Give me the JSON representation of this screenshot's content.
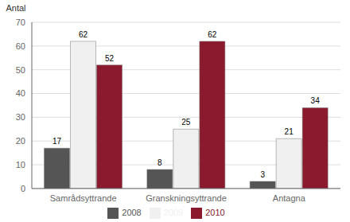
{
  "chart_data": {
    "type": "bar",
    "categories": [
      "Samrådsyttrande",
      "Granskningsyttrande",
      "Antagna"
    ],
    "series": [
      {
        "name": "2008",
        "color": "#555555",
        "values": [
          17,
          8,
          3
        ]
      },
      {
        "name": "2009",
        "color": "#f0f0f0",
        "values": [
          62,
          25,
          21
        ]
      },
      {
        "name": "2010",
        "color": "#8b1a2e",
        "values": [
          52,
          62,
          34
        ]
      }
    ],
    "ylabel": "Antal",
    "ylim": [
      0,
      70
    ],
    "yticks": [
      0,
      10,
      20,
      30,
      40,
      50,
      60,
      70
    ],
    "grid": true,
    "legend": "bottom",
    "data_labels": true
  }
}
